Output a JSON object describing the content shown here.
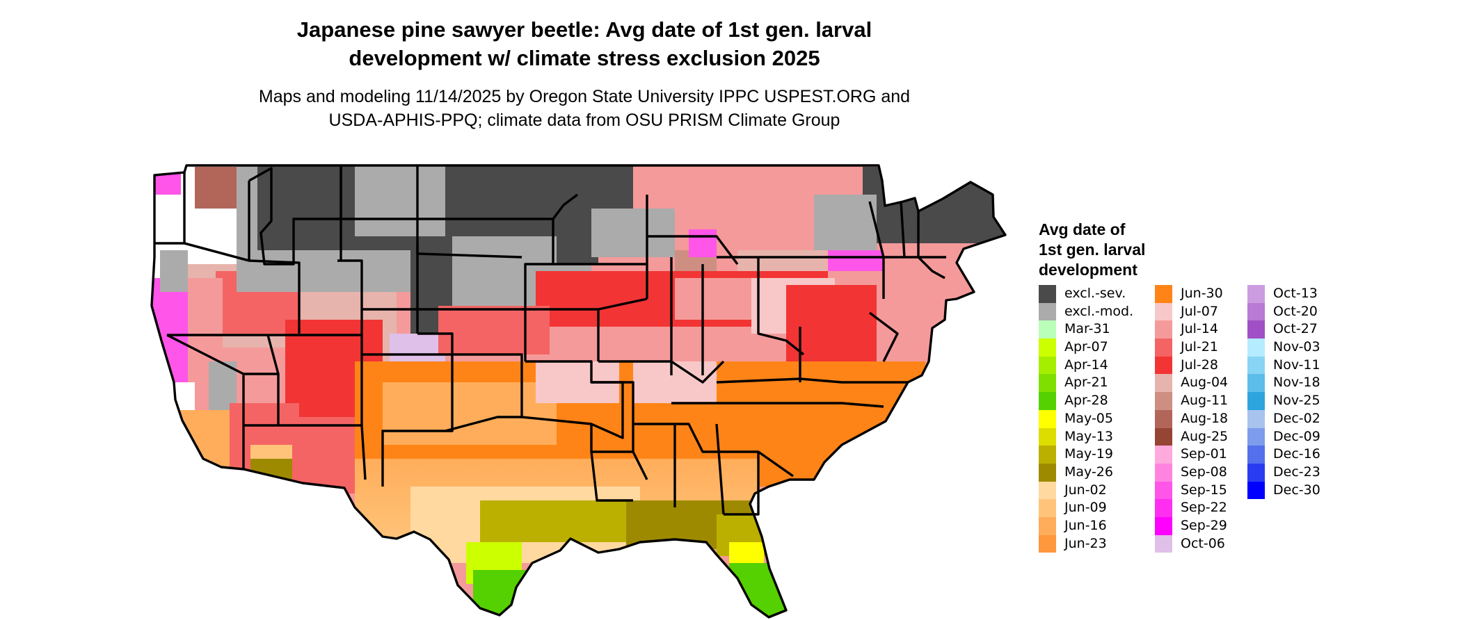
{
  "title": {
    "line1": "Japanese pine sawyer beetle: Avg date of 1st gen. larval",
    "line2": "development w/ climate stress exclusion 2025"
  },
  "subtitle": {
    "line1": "Maps and modeling 11/14/2025 by Oregon State University IPPC USPEST.ORG and",
    "line2": "USDA-APHIS-PPQ; climate data from OSU PRISM Climate Group"
  },
  "legend": {
    "title_lines": [
      "Avg date of",
      "1st gen. larval",
      "development"
    ],
    "columns": [
      [
        {
          "label": "excl.-sev.",
          "color": "#4a4a4a"
        },
        {
          "label": "excl.-mod.",
          "color": "#ababab"
        },
        {
          "label": "Mar-31",
          "color": "#b9ffb9"
        },
        {
          "label": "Apr-07",
          "color": "#ccff00"
        },
        {
          "label": "Apr-14",
          "color": "#a6ee00"
        },
        {
          "label": "Apr-21",
          "color": "#7fe000"
        },
        {
          "label": "Apr-28",
          "color": "#55d000"
        },
        {
          "label": "May-05",
          "color": "#ffff00"
        },
        {
          "label": "May-13",
          "color": "#dddd00"
        },
        {
          "label": "May-19",
          "color": "#bbb000"
        },
        {
          "label": "May-26",
          "color": "#9e8a00"
        },
        {
          "label": "Jun-02",
          "color": "#ffd9a0"
        },
        {
          "label": "Jun-09",
          "color": "#ffc47a"
        },
        {
          "label": "Jun-16",
          "color": "#ffad5a"
        },
        {
          "label": "Jun-23",
          "color": "#ff983c"
        }
      ],
      [
        {
          "label": "Jun-30",
          "color": "#ff8417"
        },
        {
          "label": "Jul-07",
          "color": "#f8c8c8"
        },
        {
          "label": "Jul-14",
          "color": "#f49a9a"
        },
        {
          "label": "Jul-21",
          "color": "#f46464"
        },
        {
          "label": "Jul-28",
          "color": "#f23434"
        },
        {
          "label": "Aug-04",
          "color": "#e6b4ac"
        },
        {
          "label": "Aug-11",
          "color": "#cf8e82"
        },
        {
          "label": "Aug-18",
          "color": "#b2665a"
        },
        {
          "label": "Aug-25",
          "color": "#964434"
        },
        {
          "label": "Sep-01",
          "color": "#ffaadd"
        },
        {
          "label": "Sep-08",
          "color": "#ff84e0"
        },
        {
          "label": "Sep-15",
          "color": "#ff55e8"
        },
        {
          "label": "Sep-22",
          "color": "#ff2ef0"
        },
        {
          "label": "Sep-29",
          "color": "#ff00ff"
        },
        {
          "label": "Oct-06",
          "color": "#dfc0e8"
        }
      ],
      [
        {
          "label": "Oct-13",
          "color": "#cc9ce0"
        },
        {
          "label": "Oct-20",
          "color": "#b87ad4"
        },
        {
          "label": "Oct-27",
          "color": "#a050c4"
        },
        {
          "label": "Nov-03",
          "color": "#b5ecff"
        },
        {
          "label": "Nov-11",
          "color": "#88d4f4"
        },
        {
          "label": "Nov-18",
          "color": "#5cbde8"
        },
        {
          "label": "Nov-25",
          "color": "#2ea4de"
        },
        {
          "label": "Dec-02",
          "color": "#a8c4ee"
        },
        {
          "label": "Dec-09",
          "color": "#7e9cec"
        },
        {
          "label": "Dec-16",
          "color": "#5470ec"
        },
        {
          "label": "Dec-23",
          "color": "#2a3cf0"
        },
        {
          "label": "Dec-30",
          "color": "#0000ff"
        }
      ]
    ]
  }
}
